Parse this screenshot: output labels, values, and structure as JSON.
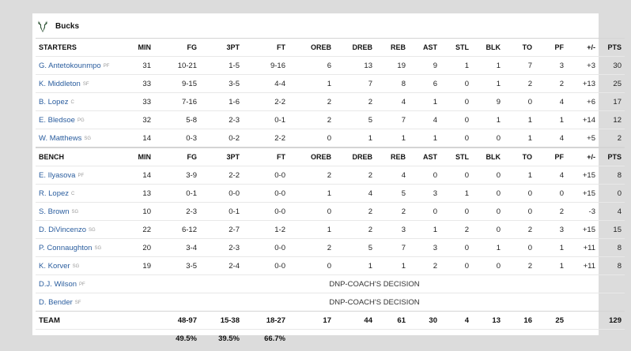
{
  "team": {
    "name": "Bucks",
    "logo_icon": "bucks-deer-logo-icon",
    "logo_color": "#2c5234"
  },
  "columns": [
    "MIN",
    "FG",
    "3PT",
    "FT",
    "OREB",
    "DREB",
    "REB",
    "AST",
    "STL",
    "BLK",
    "TO",
    "PF",
    "+/-",
    "PTS"
  ],
  "starters": {
    "header": "STARTERS",
    "players": [
      {
        "name": "G. Antetokounmpo",
        "pos": "PF",
        "stats": [
          "31",
          "10-21",
          "1-5",
          "9-16",
          "6",
          "13",
          "19",
          "9",
          "1",
          "1",
          "7",
          "3",
          "+3",
          "30"
        ]
      },
      {
        "name": "K. Middleton",
        "pos": "SF",
        "stats": [
          "33",
          "9-15",
          "3-5",
          "4-4",
          "1",
          "7",
          "8",
          "6",
          "0",
          "1",
          "2",
          "2",
          "+13",
          "25"
        ]
      },
      {
        "name": "B. Lopez",
        "pos": "C",
        "stats": [
          "33",
          "7-16",
          "1-6",
          "2-2",
          "2",
          "2",
          "4",
          "1",
          "0",
          "9",
          "0",
          "4",
          "+6",
          "17"
        ]
      },
      {
        "name": "E. Bledsoe",
        "pos": "PG",
        "stats": [
          "32",
          "5-8",
          "2-3",
          "0-1",
          "2",
          "5",
          "7",
          "4",
          "0",
          "1",
          "1",
          "1",
          "+14",
          "12"
        ]
      },
      {
        "name": "W. Matthews",
        "pos": "SG",
        "stats": [
          "14",
          "0-3",
          "0-2",
          "2-2",
          "0",
          "1",
          "1",
          "1",
          "0",
          "0",
          "1",
          "4",
          "+5",
          "2"
        ]
      }
    ]
  },
  "bench": {
    "header": "BENCH",
    "players": [
      {
        "name": "E. Ilyasova",
        "pos": "PF",
        "stats": [
          "14",
          "3-9",
          "2-2",
          "0-0",
          "2",
          "2",
          "4",
          "0",
          "0",
          "0",
          "1",
          "4",
          "+15",
          "8"
        ]
      },
      {
        "name": "R. Lopez",
        "pos": "C",
        "stats": [
          "13",
          "0-1",
          "0-0",
          "0-0",
          "1",
          "4",
          "5",
          "3",
          "1",
          "0",
          "0",
          "0",
          "+15",
          "0"
        ]
      },
      {
        "name": "S. Brown",
        "pos": "SG",
        "stats": [
          "10",
          "2-3",
          "0-1",
          "0-0",
          "0",
          "2",
          "2",
          "0",
          "0",
          "0",
          "0",
          "2",
          "-3",
          "4"
        ]
      },
      {
        "name": "D. DiVincenzo",
        "pos": "SG",
        "stats": [
          "22",
          "6-12",
          "2-7",
          "1-2",
          "1",
          "2",
          "3",
          "1",
          "2",
          "0",
          "2",
          "3",
          "+15",
          "15"
        ]
      },
      {
        "name": "P. Connaughton",
        "pos": "SG",
        "stats": [
          "20",
          "3-4",
          "2-3",
          "0-0",
          "2",
          "5",
          "7",
          "3",
          "0",
          "1",
          "0",
          "1",
          "+11",
          "8"
        ]
      },
      {
        "name": "K. Korver",
        "pos": "SG",
        "stats": [
          "19",
          "3-5",
          "2-4",
          "0-0",
          "0",
          "1",
          "1",
          "2",
          "0",
          "0",
          "2",
          "1",
          "+11",
          "8"
        ]
      }
    ],
    "dnp": [
      {
        "name": "D.J. Wilson",
        "pos": "PF",
        "note": "DNP-COACH'S DECISION"
      },
      {
        "name": "D. Bender",
        "pos": "SF",
        "note": "DNP-COACH'S DECISION"
      }
    ]
  },
  "totals": {
    "label": "TEAM",
    "stats": [
      "",
      "48-97",
      "15-38",
      "18-27",
      "17",
      "44",
      "61",
      "30",
      "4",
      "13",
      "16",
      "25",
      "",
      "129"
    ],
    "pcts": [
      "",
      "49.5%",
      "39.5%",
      "66.7%",
      "",
      "",
      "",
      "",
      "",
      "",
      "",
      "",
      "",
      ""
    ]
  }
}
